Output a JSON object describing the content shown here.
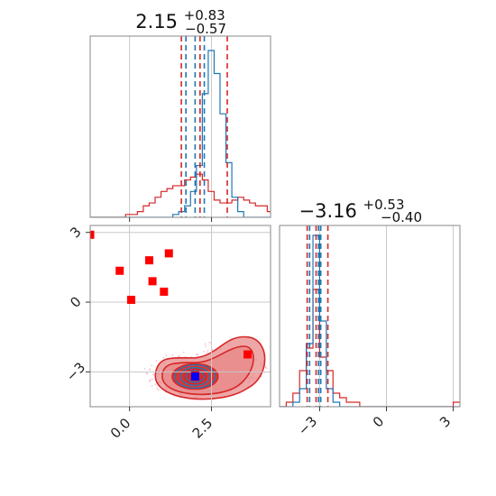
{
  "colors": {
    "red": "#d62728",
    "red_fill": "#e8898a",
    "blue": "#1f77b4",
    "grid": "#c8c8c8",
    "marker_red": "#ff0000",
    "marker_blue": "#0000ff",
    "scatter_pink": "#f7b6c2"
  },
  "chart_data": [
    {
      "type": "histogram",
      "panel": "marginal-x",
      "title": {
        "main": "2.15",
        "sup": "+0.83",
        "sub": "−0.57"
      },
      "xlim": [
        -1.2,
        4.3
      ],
      "grid": true,
      "bin_edges_start": -1.2,
      "bin_width": 0.18,
      "series": [
        {
          "color": "red",
          "counts": [
            0,
            0,
            0,
            0,
            0,
            0,
            1,
            1,
            2,
            4,
            5,
            7,
            9,
            10,
            11,
            11,
            13,
            14,
            15,
            13,
            9,
            6,
            5,
            5,
            6,
            7,
            6,
            5,
            4,
            4,
            2,
            1,
            1,
            0,
            0
          ]
        },
        {
          "color": "blue",
          "counts": [
            0,
            0,
            0,
            0,
            0,
            0,
            0,
            0,
            0,
            0,
            0,
            0,
            0,
            0,
            1,
            2,
            4,
            9,
            18,
            43,
            58,
            50,
            36,
            19,
            7,
            2,
            0,
            0,
            0,
            0,
            0,
            0,
            0,
            0,
            0
          ]
        }
      ],
      "vlines": [
        {
          "color": "red",
          "x": 1.58
        },
        {
          "color": "red",
          "x": 2.15
        },
        {
          "color": "red",
          "x": 2.98
        },
        {
          "color": "blue",
          "x": 1.72
        },
        {
          "color": "blue",
          "x": 2.0
        },
        {
          "color": "blue",
          "x": 2.28
        }
      ]
    },
    {
      "type": "histogram",
      "panel": "marginal-y",
      "title": {
        "main": "−3.16",
        "sup": "+0.53",
        "sub": "−0.40"
      },
      "xlim": [
        -4.8,
        3.3
      ],
      "xticks": [
        -3,
        0,
        3
      ],
      "xtick_labels": [
        "−3",
        "0",
        "3"
      ],
      "grid": true,
      "bin_edges_start": -4.8,
      "bin_width": 0.3,
      "series": [
        {
          "color": "red",
          "counts": [
            0,
            1,
            3,
            8,
            13,
            26,
            11,
            8,
            3,
            2,
            1,
            1,
            0,
            0,
            0,
            0,
            0,
            0,
            0,
            0,
            0,
            0,
            0,
            0,
            0,
            0,
            1
          ]
        },
        {
          "color": "blue",
          "counts": [
            0,
            0,
            1,
            4,
            14,
            38,
            19,
            4,
            1,
            0,
            0,
            0,
            0,
            0,
            0,
            0,
            0,
            0,
            0,
            0,
            0,
            0,
            0,
            0,
            0,
            0,
            0
          ]
        }
      ],
      "vlines": [
        {
          "color": "red",
          "x": -3.56
        },
        {
          "color": "red",
          "x": -3.16
        },
        {
          "color": "red",
          "x": -2.63
        },
        {
          "color": "blue",
          "x": -3.45
        },
        {
          "color": "blue",
          "x": -3.05
        },
        {
          "color": "blue",
          "x": -2.95
        }
      ]
    },
    {
      "type": "scatter",
      "panel": "joint",
      "xlim": [
        -1.2,
        4.3
      ],
      "ylim": [
        -4.5,
        3.3
      ],
      "xticks": [
        0.0,
        2.5
      ],
      "xtick_labels": [
        "0.0",
        "2.5"
      ],
      "yticks": [
        3,
        0,
        -3
      ],
      "ytick_labels": [
        "3",
        "0",
        "−3"
      ],
      "grid": true,
      "points_red": [
        [
          -1.2,
          2.9
        ],
        [
          -0.3,
          1.35
        ],
        [
          0.6,
          1.8
        ],
        [
          1.2,
          2.1
        ],
        [
          0.7,
          0.9
        ],
        [
          1.05,
          0.45
        ],
        [
          0.05,
          0.1
        ],
        [
          3.6,
          -2.25
        ],
        [
          2.0,
          -3.15
        ]
      ],
      "point_blue": [
        2.0,
        -3.2
      ],
      "contours": [
        {
          "center": [
            2.0,
            -3.2
          ],
          "rx": 1.28,
          "ry": 0.9
        },
        {
          "center": [
            2.05,
            -3.1
          ],
          "rx": 1.0,
          "ry": 0.72
        },
        {
          "center": [
            2.0,
            -3.2
          ],
          "rx": 0.7,
          "ry": 0.55
        },
        {
          "center": [
            2.0,
            -3.2
          ],
          "rx": 0.35,
          "ry": 0.32
        }
      ]
    }
  ]
}
